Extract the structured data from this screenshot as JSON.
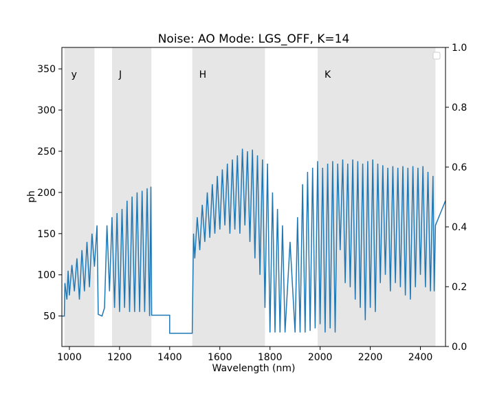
{
  "chart_data": {
    "type": "line",
    "title": "Noise: AO Mode: LGS_OFF, K=14",
    "xlabel": "Wavelength (nm)",
    "ylabel": "ph",
    "xlim": [
      970,
      2500
    ],
    "ylim": [
      13,
      376
    ],
    "y2lim": [
      0.0,
      1.0
    ],
    "xticks": [
      "1000",
      "1200",
      "1400",
      "1600",
      "1800",
      "2000",
      "2200",
      "2400"
    ],
    "yticks": [
      "50",
      "100",
      "150",
      "200",
      "250",
      "300",
      "350"
    ],
    "y2ticks": [
      "0.0",
      "0.2",
      "0.4",
      "0.6",
      "0.8",
      "1.0"
    ],
    "grid": false,
    "legend": "top-right, empty",
    "line_color": "#1f77b4",
    "band_color": "#e6e6e6",
    "bands": [
      {
        "label": "y",
        "x0": 980,
        "x1": 1100
      },
      {
        "label": "J",
        "x0": 1170,
        "x1": 1327
      },
      {
        "label": "H",
        "x0": 1490,
        "x1": 1780
      },
      {
        "label": "K",
        "x0": 1990,
        "x1": 2460
      }
    ],
    "series": [
      {
        "values": [
          {
            "x": 970,
            "y": 50
          },
          {
            "x": 980,
            "y": 50
          },
          {
            "x": 982,
            "y": 90
          },
          {
            "x": 990,
            "y": 70
          },
          {
            "x": 995,
            "y": 105
          },
          {
            "x": 1000,
            "y": 75
          },
          {
            "x": 1010,
            "y": 112
          },
          {
            "x": 1020,
            "y": 80
          },
          {
            "x": 1030,
            "y": 120
          },
          {
            "x": 1040,
            "y": 70
          },
          {
            "x": 1050,
            "y": 130
          },
          {
            "x": 1060,
            "y": 80
          },
          {
            "x": 1070,
            "y": 140
          },
          {
            "x": 1080,
            "y": 85
          },
          {
            "x": 1090,
            "y": 150
          },
          {
            "x": 1100,
            "y": 110
          },
          {
            "x": 1110,
            "y": 160
          },
          {
            "x": 1115,
            "y": 52
          },
          {
            "x": 1130,
            "y": 50
          },
          {
            "x": 1140,
            "y": 60
          },
          {
            "x": 1150,
            "y": 160
          },
          {
            "x": 1160,
            "y": 80
          },
          {
            "x": 1170,
            "y": 170
          },
          {
            "x": 1180,
            "y": 60
          },
          {
            "x": 1190,
            "y": 175
          },
          {
            "x": 1200,
            "y": 55
          },
          {
            "x": 1210,
            "y": 180
          },
          {
            "x": 1220,
            "y": 60
          },
          {
            "x": 1230,
            "y": 190
          },
          {
            "x": 1240,
            "y": 55
          },
          {
            "x": 1250,
            "y": 195
          },
          {
            "x": 1260,
            "y": 55
          },
          {
            "x": 1270,
            "y": 200
          },
          {
            "x": 1280,
            "y": 55
          },
          {
            "x": 1290,
            "y": 202
          },
          {
            "x": 1300,
            "y": 55
          },
          {
            "x": 1310,
            "y": 205
          },
          {
            "x": 1320,
            "y": 50
          },
          {
            "x": 1325,
            "y": 207
          },
          {
            "x": 1328,
            "y": 51
          },
          {
            "x": 1400,
            "y": 51
          },
          {
            "x": 1400,
            "y": 29
          },
          {
            "x": 1490,
            "y": 29
          },
          {
            "x": 1495,
            "y": 150
          },
          {
            "x": 1500,
            "y": 120
          },
          {
            "x": 1510,
            "y": 170
          },
          {
            "x": 1520,
            "y": 130
          },
          {
            "x": 1530,
            "y": 185
          },
          {
            "x": 1540,
            "y": 140
          },
          {
            "x": 1550,
            "y": 200
          },
          {
            "x": 1560,
            "y": 145
          },
          {
            "x": 1570,
            "y": 210
          },
          {
            "x": 1580,
            "y": 150
          },
          {
            "x": 1590,
            "y": 220
          },
          {
            "x": 1600,
            "y": 155
          },
          {
            "x": 1610,
            "y": 228
          },
          {
            "x": 1620,
            "y": 160
          },
          {
            "x": 1630,
            "y": 235
          },
          {
            "x": 1640,
            "y": 150
          },
          {
            "x": 1650,
            "y": 240
          },
          {
            "x": 1660,
            "y": 155
          },
          {
            "x": 1670,
            "y": 245
          },
          {
            "x": 1680,
            "y": 150
          },
          {
            "x": 1690,
            "y": 253
          },
          {
            "x": 1700,
            "y": 160
          },
          {
            "x": 1710,
            "y": 250
          },
          {
            "x": 1720,
            "y": 140
          },
          {
            "x": 1730,
            "y": 252
          },
          {
            "x": 1740,
            "y": 120
          },
          {
            "x": 1750,
            "y": 245
          },
          {
            "x": 1760,
            "y": 100
          },
          {
            "x": 1770,
            "y": 240
          },
          {
            "x": 1780,
            "y": 60
          },
          {
            "x": 1790,
            "y": 235
          },
          {
            "x": 1800,
            "y": 30
          },
          {
            "x": 1810,
            "y": 200
          },
          {
            "x": 1820,
            "y": 30
          },
          {
            "x": 1830,
            "y": 180
          },
          {
            "x": 1840,
            "y": 30
          },
          {
            "x": 1850,
            "y": 160
          },
          {
            "x": 1860,
            "y": 30
          },
          {
            "x": 1880,
            "y": 140
          },
          {
            "x": 1900,
            "y": 30
          },
          {
            "x": 1910,
            "y": 170
          },
          {
            "x": 1920,
            "y": 30
          },
          {
            "x": 1930,
            "y": 210
          },
          {
            "x": 1940,
            "y": 30
          },
          {
            "x": 1950,
            "y": 225
          },
          {
            "x": 1960,
            "y": 32
          },
          {
            "x": 1970,
            "y": 230
          },
          {
            "x": 1980,
            "y": 35
          },
          {
            "x": 1990,
            "y": 238
          },
          {
            "x": 2000,
            "y": 40
          },
          {
            "x": 2010,
            "y": 230
          },
          {
            "x": 2020,
            "y": 30
          },
          {
            "x": 2030,
            "y": 235
          },
          {
            "x": 2040,
            "y": 35
          },
          {
            "x": 2050,
            "y": 238
          },
          {
            "x": 2060,
            "y": 30
          },
          {
            "x": 2070,
            "y": 235
          },
          {
            "x": 2080,
            "y": 130
          },
          {
            "x": 2090,
            "y": 240
          },
          {
            "x": 2100,
            "y": 90
          },
          {
            "x": 2110,
            "y": 235
          },
          {
            "x": 2120,
            "y": 85
          },
          {
            "x": 2130,
            "y": 240
          },
          {
            "x": 2140,
            "y": 70
          },
          {
            "x": 2150,
            "y": 238
          },
          {
            "x": 2160,
            "y": 60
          },
          {
            "x": 2170,
            "y": 235
          },
          {
            "x": 2180,
            "y": 45
          },
          {
            "x": 2190,
            "y": 238
          },
          {
            "x": 2200,
            "y": 60
          },
          {
            "x": 2210,
            "y": 240
          },
          {
            "x": 2220,
            "y": 55
          },
          {
            "x": 2230,
            "y": 235
          },
          {
            "x": 2240,
            "y": 90
          },
          {
            "x": 2250,
            "y": 233
          },
          {
            "x": 2260,
            "y": 100
          },
          {
            "x": 2270,
            "y": 230
          },
          {
            "x": 2280,
            "y": 80
          },
          {
            "x": 2290,
            "y": 232
          },
          {
            "x": 2300,
            "y": 90
          },
          {
            "x": 2310,
            "y": 230
          },
          {
            "x": 2320,
            "y": 85
          },
          {
            "x": 2330,
            "y": 232
          },
          {
            "x": 2340,
            "y": 75
          },
          {
            "x": 2350,
            "y": 230
          },
          {
            "x": 2360,
            "y": 70
          },
          {
            "x": 2370,
            "y": 232
          },
          {
            "x": 2380,
            "y": 85
          },
          {
            "x": 2390,
            "y": 230
          },
          {
            "x": 2400,
            "y": 100
          },
          {
            "x": 2410,
            "y": 232
          },
          {
            "x": 2420,
            "y": 85
          },
          {
            "x": 2430,
            "y": 225
          },
          {
            "x": 2440,
            "y": 80
          },
          {
            "x": 2450,
            "y": 220
          },
          {
            "x": 2455,
            "y": 80
          },
          {
            "x": 2460,
            "y": 160
          },
          {
            "x": 2500,
            "y": 190
          }
        ]
      }
    ]
  }
}
